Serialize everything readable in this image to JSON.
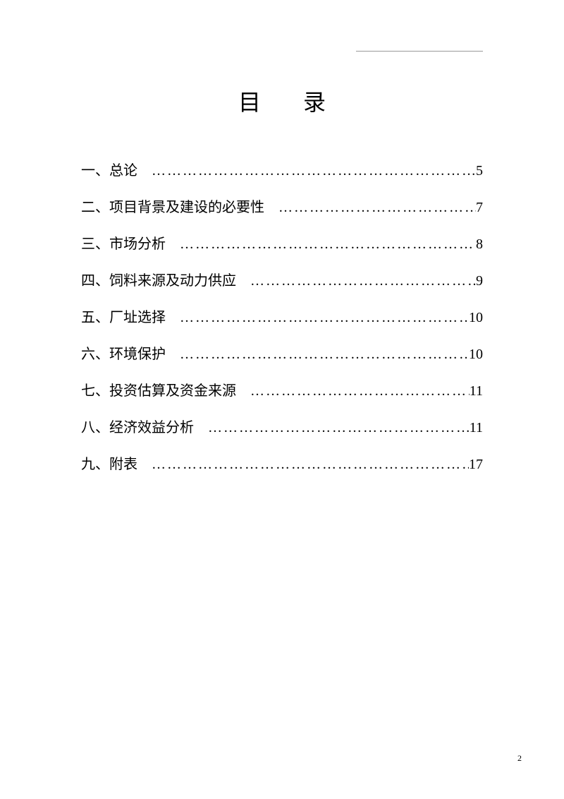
{
  "title": "目录",
  "toc": {
    "items": [
      {
        "label": "一、总论",
        "page": "5"
      },
      {
        "label": "二、项目背景及建设的必要性",
        "page": "7"
      },
      {
        "label": "三、市场分析",
        "page": "8"
      },
      {
        "label": "四、饲料来源及动力供应",
        "page": "9"
      },
      {
        "label": "五、厂址选择",
        "page": "10"
      },
      {
        "label": "六、环境保护",
        "page": "10"
      },
      {
        "label": "七、投资估算及资金来源",
        "page": "11"
      },
      {
        "label": "八、经济效益分析",
        "page": "11"
      },
      {
        "label": "九、附表",
        "page": "17"
      }
    ]
  },
  "pageNumber": "2",
  "dotLeader": "……………………………………………………………………",
  "colors": {
    "text": "#000000",
    "background": "#ffffff",
    "headerLine": "#999999"
  },
  "typography": {
    "titleFontSize": 32,
    "bodyFontSize": 20,
    "pageNumberFontSize": 12,
    "fontFamily": "SimSun"
  }
}
